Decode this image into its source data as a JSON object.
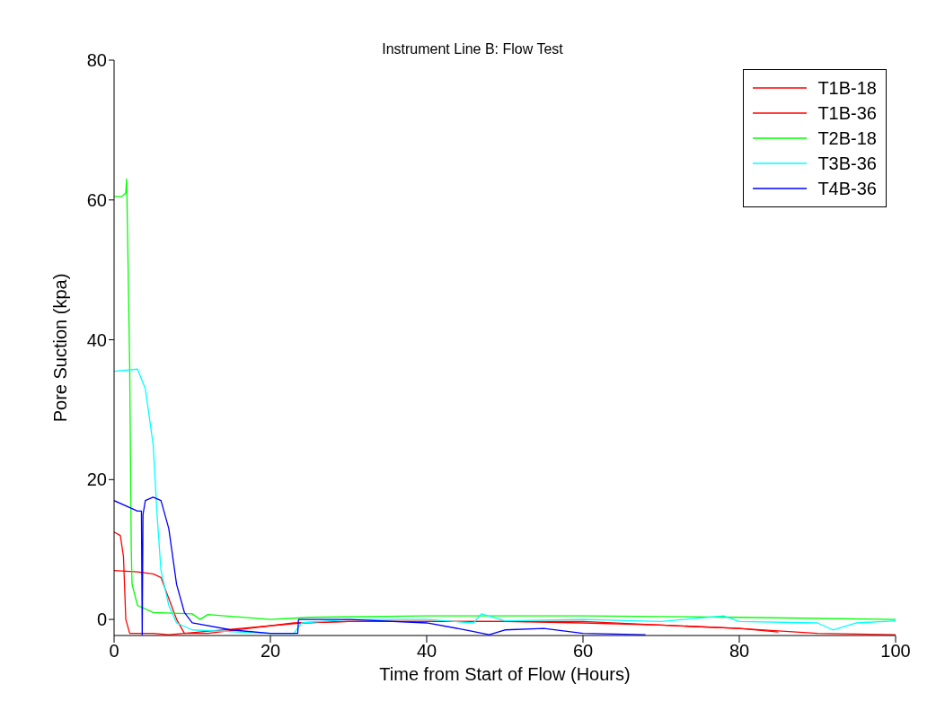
{
  "chart_data": {
    "type": "line",
    "title": "Instrument Line B: Flow Test",
    "xlabel": "Time from Start of Flow (Hours)",
    "ylabel": "Pore Suction (kpa)",
    "xlim": [
      0,
      100
    ],
    "ylim": [
      -2.3,
      80
    ],
    "xticks": [
      0,
      20,
      40,
      60,
      80,
      100
    ],
    "yticks": [
      0,
      20,
      40,
      60,
      80
    ],
    "grid": false,
    "legend": "top right",
    "line_style": "solid",
    "marker": "none",
    "series": [
      {
        "name": "T1B-18",
        "color": "#ff0000",
        "x": [
          0,
          0.8,
          1.2,
          1.5,
          2,
          5,
          7,
          24,
          30,
          40,
          50,
          60,
          70,
          80,
          85
        ],
        "values": [
          12.5,
          12,
          9,
          0,
          -2,
          -2,
          -2.2,
          -0.5,
          -0.3,
          -0.3,
          -0.3,
          -0.5,
          -0.8,
          -1.3,
          -1.8
        ]
      },
      {
        "name": "T1B-36",
        "color": "#ff0000",
        "x": [
          0,
          3,
          5,
          6,
          7,
          8,
          9,
          12,
          23,
          30,
          40,
          50,
          60,
          70,
          80,
          90,
          100
        ],
        "values": [
          7,
          6.8,
          6.5,
          6,
          3,
          0,
          -2,
          -2,
          -0.5,
          -0.3,
          -0.3,
          -0.3,
          -0.3,
          -0.8,
          -1.3,
          -2,
          -2.2
        ]
      },
      {
        "name": "T2B-18",
        "color": "#00ff00",
        "x": [
          0,
          1,
          1.5,
          1.6,
          1.7,
          2,
          2.2,
          2.3,
          3,
          5,
          10,
          11,
          12,
          20,
          25,
          40,
          60,
          80,
          100
        ],
        "values": [
          60.5,
          60.5,
          61,
          63,
          57,
          36,
          10,
          5,
          2,
          1,
          0.8,
          0,
          0.7,
          0,
          0.3,
          0.5,
          0.5,
          0.3,
          0
        ]
      },
      {
        "name": "T3B-36",
        "color": "#00ffff",
        "x": [
          0,
          3,
          4,
          5,
          5.5,
          6,
          7,
          8,
          10,
          20,
          23,
          24,
          30,
          40,
          46,
          47,
          50,
          60,
          70,
          78,
          80,
          90,
          92,
          95,
          100
        ],
        "values": [
          35.5,
          35.8,
          33,
          25,
          15,
          7,
          2,
          -0.5,
          -1.5,
          -2,
          -2,
          -0.5,
          0,
          0,
          -0.5,
          0.8,
          -0.2,
          0,
          -0.3,
          0.5,
          -0.3,
          -0.5,
          -1.5,
          -0.5,
          -0.2
        ]
      },
      {
        "name": "T4B-36",
        "color": "#0000ff",
        "x": [
          0,
          3,
          3.5,
          3.6,
          3.7,
          4,
          5,
          6,
          7,
          8,
          9,
          10,
          15,
          20,
          23.5,
          23.6,
          30,
          40,
          45,
          48,
          50,
          55,
          60,
          68
        ],
        "values": [
          17,
          15.5,
          15.5,
          -2.2,
          15,
          17,
          17.5,
          17,
          13,
          5,
          1,
          -0.5,
          -1.5,
          -2,
          -2,
          0,
          0,
          -0.5,
          -1.5,
          -2.2,
          -1.5,
          -1.3,
          -2,
          -2.2
        ]
      }
    ]
  }
}
